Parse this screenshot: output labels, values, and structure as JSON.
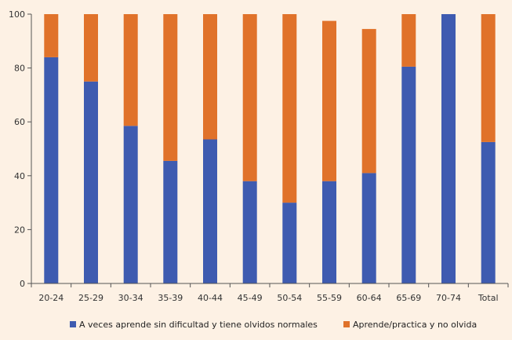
{
  "chart_data": {
    "type": "bar",
    "stacked": true,
    "categories": [
      "20-24",
      "25-29",
      "30-34",
      "35-39",
      "40-44",
      "45-49",
      "50-54",
      "55-59",
      "60-64",
      "65-69",
      "70-74",
      "Total"
    ],
    "series": [
      {
        "name": "A veces aprende sin dificultad y tiene olvidos normales",
        "color": "#3e5bb0",
        "values": [
          84,
          75,
          58.5,
          45.5,
          53.5,
          38,
          30,
          38,
          41,
          80.5,
          100,
          52.5
        ]
      },
      {
        "name": "Aprende/practica y no olvida",
        "color": "#e0722a",
        "values": [
          16,
          25,
          41.5,
          54.5,
          46.5,
          62,
          70,
          59.5,
          53.5,
          19.5,
          0,
          47.5
        ]
      }
    ],
    "y_ticks": [
      "0",
      "20",
      "40",
      "60",
      "80",
      "100"
    ],
    "ylim": [
      0,
      100
    ],
    "title": "",
    "xlabel": "",
    "ylabel": "",
    "grid": false,
    "legend_position": "bottom"
  }
}
